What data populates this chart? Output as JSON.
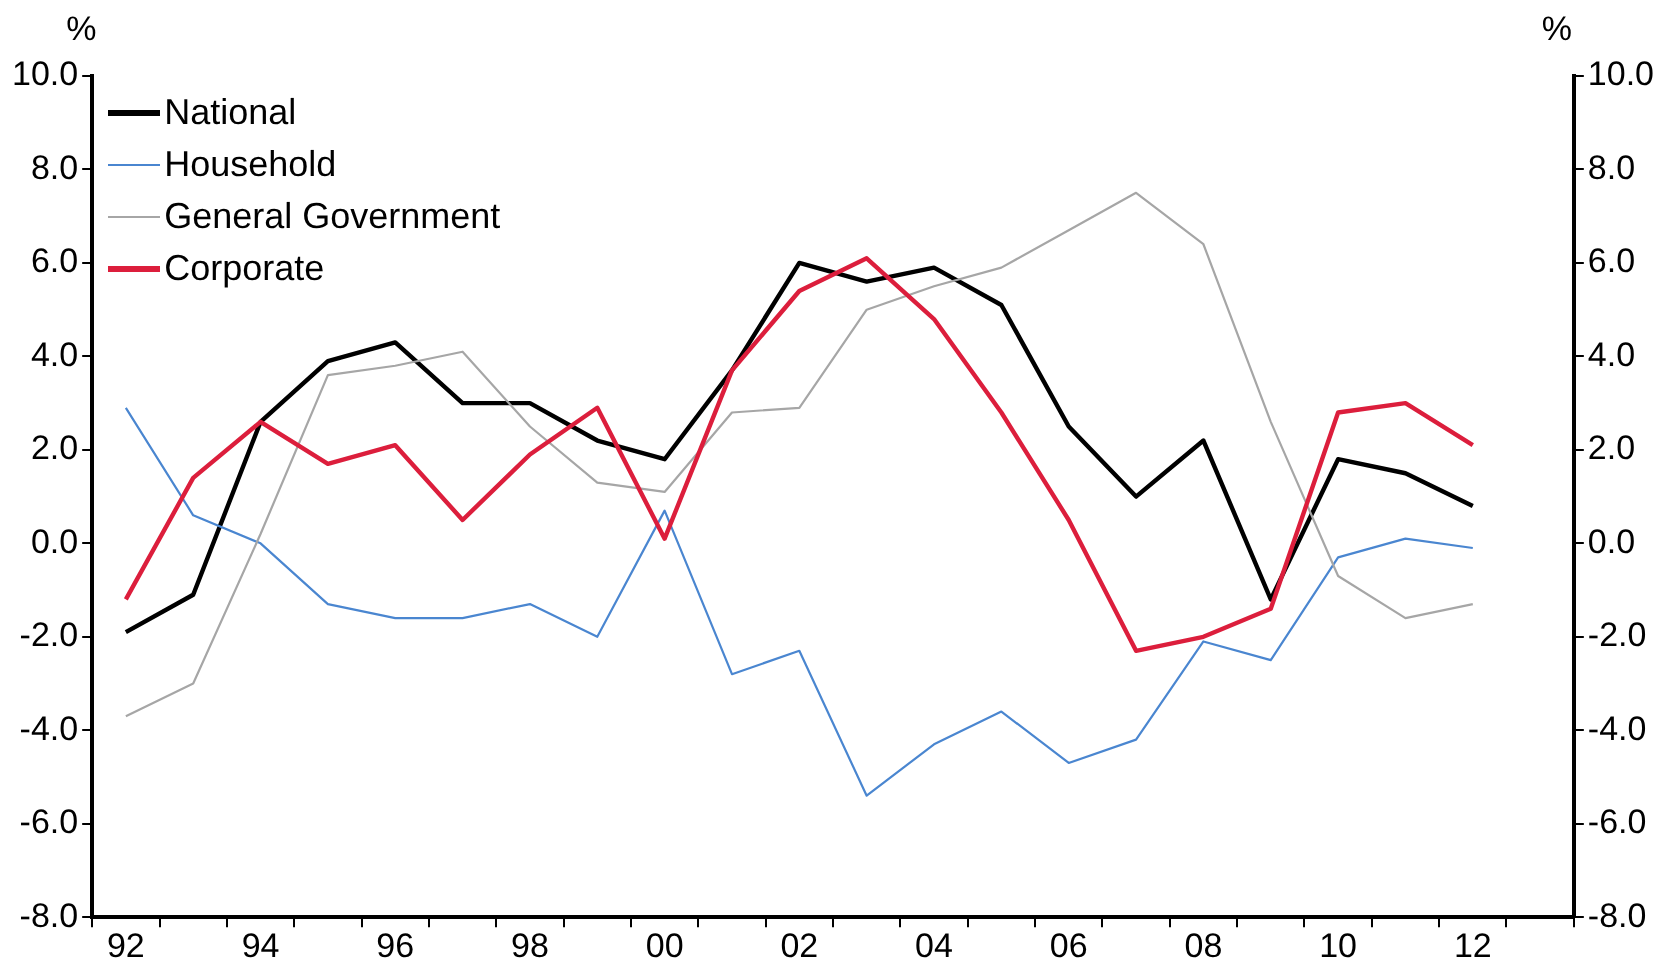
{
  "chart_data": {
    "type": "line",
    "ylabel": "%",
    "y2label": "%",
    "categories": [
      "92",
      null,
      "94",
      null,
      "96",
      null,
      "98",
      null,
      "00",
      null,
      "02",
      null,
      "04",
      null,
      "06",
      null,
      "08",
      null,
      "10",
      null,
      "12",
      null
    ],
    "series": [
      {
        "name": "National",
        "color": "#000000",
        "values": [
          -1.9,
          -1.1,
          2.6,
          3.9,
          4.3,
          3.0,
          3.0,
          2.2,
          1.8,
          3.7,
          6.0,
          5.6,
          5.9,
          5.1,
          2.5,
          1.0,
          2.2,
          -1.2,
          1.8,
          1.5,
          0.8,
          null
        ]
      },
      {
        "name": "Household",
        "color": "#4a86d0",
        "values": [
          2.9,
          0.6,
          0.0,
          -1.3,
          -1.6,
          -1.6,
          -1.3,
          -2.0,
          0.7,
          -2.8,
          -2.3,
          -5.4,
          -4.3,
          -3.6,
          -4.7,
          -4.2,
          -2.1,
          -2.5,
          -0.3,
          0.1,
          -0.1,
          null
        ]
      },
      {
        "name": "General Government",
        "color": "#a6a6a6",
        "values": [
          -3.7,
          -3.0,
          0.2,
          3.6,
          3.8,
          4.1,
          2.5,
          1.3,
          1.1,
          2.8,
          2.9,
          5.0,
          5.5,
          5.9,
          6.7,
          7.5,
          6.4,
          2.6,
          -0.7,
          -1.6,
          -1.3,
          null
        ]
      },
      {
        "name": "Corporate",
        "color": "#dc1e3c",
        "values": [
          -1.2,
          1.4,
          2.6,
          1.7,
          2.1,
          0.5,
          1.9,
          2.9,
          0.1,
          3.7,
          5.4,
          6.1,
          4.8,
          2.8,
          0.5,
          -2.3,
          -2.0,
          -1.4,
          2.8,
          3.0,
          2.1,
          null
        ]
      }
    ],
    "ylim": [
      -8,
      10
    ],
    "yticks": [
      {
        "value": -8,
        "label": "-8.0"
      },
      {
        "value": -6,
        "label": "-6.0"
      },
      {
        "value": -4,
        "label": "-4.0"
      },
      {
        "value": -2,
        "label": "-2.0"
      },
      {
        "value": 0,
        "label": "0.0"
      },
      {
        "value": 2,
        "label": "2.0"
      },
      {
        "value": 4,
        "label": "4.0"
      },
      {
        "value": 6,
        "label": "6.0"
      },
      {
        "value": 8,
        "label": "8.0"
      },
      {
        "value": 10,
        "label": "10.0"
      }
    ],
    "y2lim": [
      -8,
      10
    ],
    "y2ticks": [
      {
        "value": -8,
        "label": "-8.0"
      },
      {
        "value": -6,
        "label": "-6.0"
      },
      {
        "value": -4,
        "label": "-4.0"
      },
      {
        "value": -2,
        "label": "-2.0"
      },
      {
        "value": 0,
        "label": "0.0"
      },
      {
        "value": 2,
        "label": "2.0"
      },
      {
        "value": 4,
        "label": "4.0"
      },
      {
        "value": 6,
        "label": "6.0"
      },
      {
        "value": 8,
        "label": "8.0"
      },
      {
        "value": 10,
        "label": "10.0"
      }
    ],
    "grid": false,
    "legend": "top left",
    "marker": "none",
    "line_style": "solid"
  }
}
